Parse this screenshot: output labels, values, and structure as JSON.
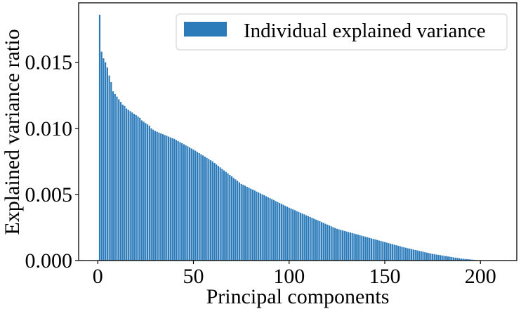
{
  "chart_data": {
    "type": "bar",
    "title": "",
    "xlabel": "Principal components",
    "ylabel": "Explained variance ratio",
    "xlim": [
      -10,
      219
    ],
    "ylim": [
      0,
      0.0195
    ],
    "xticks": [
      0,
      50,
      100,
      150,
      200
    ],
    "xtick_labels": [
      "0",
      "50",
      "100",
      "150",
      "200"
    ],
    "yticks": [
      0.0,
      0.005,
      0.01,
      0.015
    ],
    "ytick_labels": [
      "0.000",
      "0.005",
      "0.010",
      "0.015"
    ],
    "grid": false,
    "legend": {
      "position": "top-right",
      "entries": [
        "Individual explained variance"
      ]
    },
    "bar_color": "#2b7bba",
    "series": [
      {
        "name": "Individual explained variance",
        "x_start": 1,
        "values": [
          0.0186,
          0.0158,
          0.0153,
          0.015,
          0.0146,
          0.014,
          0.0135,
          0.0128,
          0.0126,
          0.0124,
          0.0122,
          0.012,
          0.0118,
          0.0117,
          0.0115,
          0.0114,
          0.0113,
          0.0112,
          0.0111,
          0.011,
          0.0109,
          0.0108,
          0.0106,
          0.0105,
          0.0104,
          0.0103,
          0.0102,
          0.01,
          0.0099,
          0.0098,
          0.00974,
          0.00968,
          0.00962,
          0.00956,
          0.0095,
          0.00944,
          0.00938,
          0.00932,
          0.00926,
          0.0092,
          0.00912,
          0.00904,
          0.00896,
          0.00888,
          0.0088,
          0.00872,
          0.00864,
          0.00856,
          0.00848,
          0.0084,
          0.00831,
          0.00822,
          0.00813,
          0.00804,
          0.00795,
          0.00786,
          0.00777,
          0.00768,
          0.00759,
          0.0075,
          0.00739,
          0.00727,
          0.00716,
          0.00705,
          0.00693,
          0.00682,
          0.00671,
          0.00659,
          0.00648,
          0.00637,
          0.00625,
          0.00614,
          0.00603,
          0.00591,
          0.0058,
          0.00573,
          0.00566,
          0.00558,
          0.00551,
          0.00544,
          0.00537,
          0.0053,
          0.00522,
          0.00515,
          0.00508,
          0.00501,
          0.00494,
          0.00486,
          0.00479,
          0.00472,
          0.00465,
          0.00458,
          0.0045,
          0.00443,
          0.00436,
          0.00429,
          0.00422,
          0.00414,
          0.00407,
          0.004,
          0.00394,
          0.00387,
          0.00381,
          0.00374,
          0.00368,
          0.00362,
          0.00355,
          0.00349,
          0.00342,
          0.00336,
          0.0033,
          0.00323,
          0.00317,
          0.0031,
          0.00304,
          0.00298,
          0.00291,
          0.00285,
          0.00278,
          0.00272,
          0.00266,
          0.00259,
          0.00253,
          0.00246,
          0.0024,
          0.00236,
          0.00232,
          0.00228,
          0.00224,
          0.0022,
          0.00216,
          0.00212,
          0.00208,
          0.00204,
          0.002,
          0.00196,
          0.00192,
          0.00188,
          0.00184,
          0.0018,
          0.00176,
          0.00172,
          0.00168,
          0.00164,
          0.0016,
          0.00156,
          0.00152,
          0.00148,
          0.00144,
          0.0014,
          0.00136,
          0.00132,
          0.00128,
          0.00124,
          0.0012,
          0.00116,
          0.00112,
          0.00108,
          0.00104,
          0.001,
          0.00097,
          0.00093,
          0.0009,
          0.00087,
          0.00083,
          0.0008,
          0.00077,
          0.00073,
          0.0007,
          0.00067,
          0.00063,
          0.0006,
          0.00057,
          0.00053,
          0.0005,
          0.00048,
          0.00045,
          0.00043,
          0.00041,
          0.00038,
          0.00036,
          0.00034,
          0.00031,
          0.00029,
          0.00027,
          0.00024,
          0.00022,
          0.0002,
          0.00017,
          0.00015,
          0.00014,
          0.00012,
          0.00011,
          9e-05,
          8e-05,
          7e-05,
          5e-05,
          4e-05,
          3e-05,
          2e-05
        ]
      }
    ]
  }
}
